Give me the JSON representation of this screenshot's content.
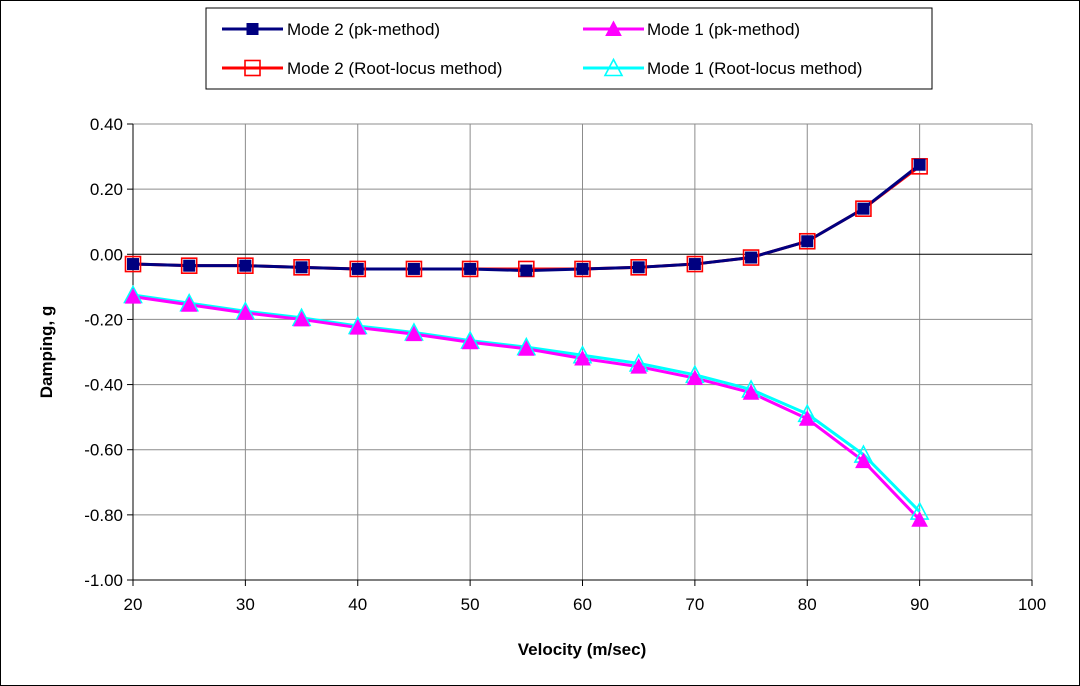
{
  "chart_data": {
    "type": "line",
    "title": "",
    "xlabel": "Velocity (m/sec)",
    "ylabel": "Damping, g",
    "xlim": [
      20,
      100
    ],
    "ylim": [
      -1.0,
      0.4
    ],
    "x_ticks": [
      "20",
      "30",
      "40",
      "50",
      "60",
      "70",
      "80",
      "90",
      "100"
    ],
    "y_ticks": [
      "0.40",
      "0.20",
      "0.00",
      "-0.20",
      "-0.40",
      "-0.60",
      "-0.80",
      "-1.00"
    ],
    "grid": true,
    "legend_position": "top",
    "x": [
      20,
      25,
      30,
      35,
      40,
      45,
      50,
      55,
      60,
      65,
      70,
      75,
      80,
      85,
      90
    ],
    "series": [
      {
        "name": "Mode 2 (pk-method)",
        "color": "#000080",
        "marker": "filled-square",
        "values": [
          -0.03,
          -0.035,
          -0.035,
          -0.04,
          -0.045,
          -0.045,
          -0.045,
          -0.05,
          -0.045,
          -0.04,
          -0.03,
          -0.01,
          0.04,
          0.14,
          0.275
        ]
      },
      {
        "name": "Mode 2 (Root-locus method)",
        "color": "#ff0000",
        "marker": "open-square",
        "values": [
          -0.03,
          -0.035,
          -0.035,
          -0.04,
          -0.045,
          -0.045,
          -0.045,
          -0.045,
          -0.045,
          -0.04,
          -0.03,
          -0.01,
          0.04,
          0.14,
          0.27
        ]
      },
      {
        "name": "Mode 1 (pk-method)",
        "color": "#ff00ff",
        "marker": "filled-triangle",
        "values": [
          -0.13,
          -0.155,
          -0.18,
          -0.2,
          -0.225,
          -0.245,
          -0.27,
          -0.29,
          -0.32,
          -0.345,
          -0.38,
          -0.425,
          -0.505,
          -0.635,
          -0.815
        ]
      },
      {
        "name": "Mode 1 (Root-locus method)",
        "color": "#00ffff",
        "marker": "open-triangle",
        "values": [
          -0.125,
          -0.15,
          -0.175,
          -0.195,
          -0.22,
          -0.24,
          -0.265,
          -0.285,
          -0.31,
          -0.335,
          -0.37,
          -0.415,
          -0.49,
          -0.615,
          -0.79
        ]
      }
    ]
  }
}
